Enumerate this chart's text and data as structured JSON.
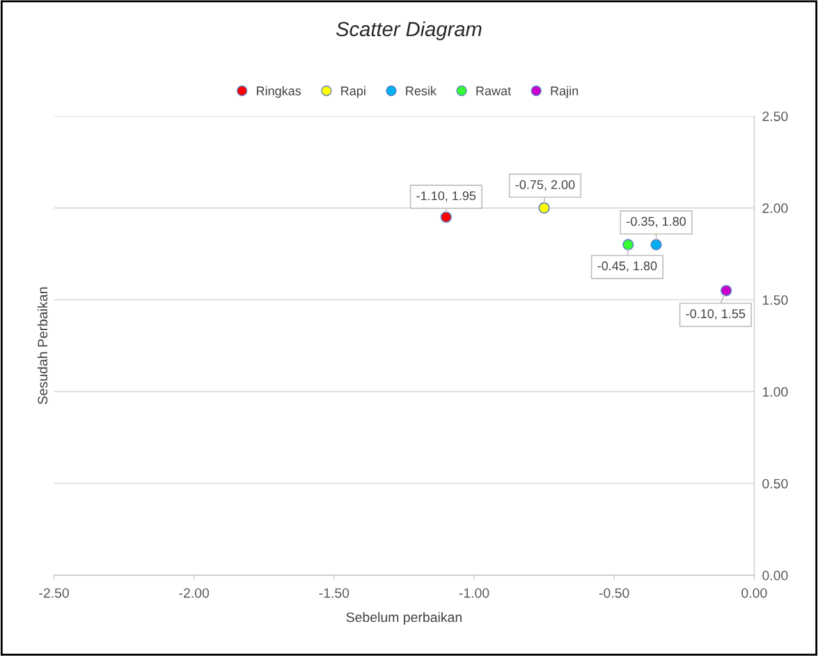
{
  "chart_data": {
    "type": "scatter",
    "title": "Scatter Diagram",
    "xlabel": "Sebelum perbaikan",
    "ylabel": "Sesudah Perbaikan",
    "xlim": [
      -2.5,
      0
    ],
    "ylim": [
      0,
      2.5
    ],
    "xticks": [
      {
        "value": -2.5,
        "label": "-2.50"
      },
      {
        "value": -2.0,
        "label": "-2.00"
      },
      {
        "value": -1.5,
        "label": "-1.50"
      },
      {
        "value": -1.0,
        "label": "-1.00"
      },
      {
        "value": -0.5,
        "label": "-0.50"
      },
      {
        "value": 0,
        "label": "0.00"
      }
    ],
    "yticks": [
      {
        "value": 0,
        "label": "0.00"
      },
      {
        "value": 0.5,
        "label": "0.50"
      },
      {
        "value": 1.0,
        "label": "1.00"
      },
      {
        "value": 1.5,
        "label": "1.50"
      },
      {
        "value": 2.0,
        "label": "2.00"
      },
      {
        "value": 2.5,
        "label": "2.50"
      }
    ],
    "grid": "y",
    "legend": "top",
    "marker": "circle",
    "series": [
      {
        "name": "Ringkas",
        "color": "#ff0000",
        "x": [
          -1.1
        ],
        "values": [
          1.95
        ],
        "value_labels": [
          "-1.10, 1.95"
        ]
      },
      {
        "name": "Rapi",
        "color": "#ffff00",
        "x": [
          -0.75
        ],
        "values": [
          2.0
        ],
        "value_labels": [
          "-0.75, 2.00"
        ]
      },
      {
        "name": "Resik",
        "color": "#00b0f0",
        "x": [
          -0.35
        ],
        "values": [
          1.8
        ],
        "value_labels": [
          "-0.35, 1.80"
        ]
      },
      {
        "name": "Rawat",
        "color": "#33ff33",
        "x": [
          -0.45
        ],
        "values": [
          1.8
        ],
        "value_labels": [
          "-0.45, 1.80"
        ]
      },
      {
        "name": "Rajin",
        "color": "#cc00cc",
        "x": [
          -0.1
        ],
        "values": [
          1.55
        ],
        "value_labels": [
          "-0.10, 1.55"
        ]
      }
    ]
  }
}
